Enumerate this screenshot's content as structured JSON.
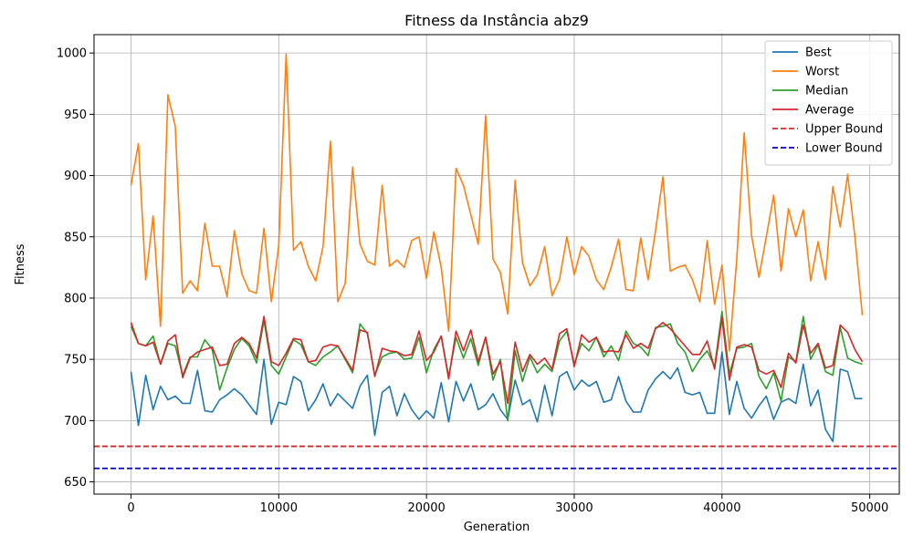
{
  "chart_data": {
    "type": "line",
    "title": "Fitness da Instância abz9",
    "xlabel": "Generation",
    "ylabel": "Fitness",
    "xlim": [
      -2500,
      52000
    ],
    "ylim": [
      640,
      1015
    ],
    "xticks": [
      0,
      10000,
      20000,
      30000,
      40000,
      50000
    ],
    "yticks": [
      650,
      700,
      750,
      800,
      850,
      900,
      950,
      1000
    ],
    "grid": true,
    "legend_position": "top-right",
    "x": [
      0,
      500,
      1000,
      1500,
      2000,
      2500,
      3000,
      3500,
      4000,
      4500,
      5000,
      5500,
      6000,
      6500,
      7000,
      7500,
      8000,
      8500,
      9000,
      9500,
      10000,
      10500,
      11000,
      11500,
      12000,
      12500,
      13000,
      13500,
      14000,
      14500,
      15000,
      15500,
      16000,
      16500,
      17000,
      17500,
      18000,
      18500,
      19000,
      19500,
      20000,
      20500,
      21000,
      21500,
      22000,
      22500,
      23000,
      23500,
      24000,
      24500,
      25000,
      25500,
      26000,
      26500,
      27000,
      27500,
      28000,
      28500,
      29000,
      29500,
      30000,
      30500,
      31000,
      31500,
      32000,
      32500,
      33000,
      33500,
      34000,
      34500,
      35000,
      35500,
      36000,
      36500,
      37000,
      37500,
      38000,
      38500,
      39000,
      39500,
      40000,
      40500,
      41000,
      41500,
      42000,
      42500,
      43000,
      43500,
      44000,
      44500,
      45000,
      45500,
      46000,
      46500,
      47000,
      47500,
      48000,
      48500,
      49000,
      49500
    ],
    "series": [
      {
        "name": "Best",
        "color": "#1f77b4",
        "values": [
          740,
          696,
          737,
          709,
          728,
          717,
          720,
          714,
          714,
          741,
          708,
          707,
          717,
          721,
          726,
          721,
          713,
          705,
          750,
          697,
          715,
          713,
          736,
          732,
          708,
          717,
          730,
          712,
          722,
          716,
          710,
          728,
          737,
          688,
          723,
          728,
          704,
          722,
          709,
          701,
          708,
          702,
          731,
          699,
          732,
          716,
          730,
          709,
          713,
          722,
          709,
          701,
          733,
          713,
          717,
          699,
          729,
          704,
          736,
          740,
          725,
          733,
          728,
          732,
          715,
          717,
          736,
          716,
          707,
          707,
          725,
          734,
          740,
          734,
          743,
          723,
          721,
          723,
          706,
          706,
          756,
          705,
          732,
          710,
          702,
          712,
          720,
          701,
          715,
          718,
          714,
          746,
          712,
          725,
          693,
          683,
          742,
          740,
          718,
          718
        ]
      },
      {
        "name": "Worst",
        "color": "#ff7f0e",
        "values": [
          892,
          926,
          815,
          867,
          777,
          966,
          940,
          804,
          814,
          806,
          861,
          826,
          826,
          801,
          855,
          820,
          806,
          804,
          857,
          797,
          843,
          999,
          839,
          846,
          826,
          814,
          842,
          928,
          797,
          812,
          907,
          844,
          830,
          827,
          892,
          826,
          831,
          825,
          847,
          850,
          816,
          854,
          825,
          773,
          906,
          892,
          868,
          844,
          949,
          832,
          821,
          787,
          896,
          829,
          810,
          819,
          842,
          802,
          815,
          850,
          819,
          842,
          834,
          815,
          807,
          825,
          848,
          807,
          806,
          849,
          815,
          855,
          899,
          822,
          825,
          827,
          815,
          797,
          847,
          795,
          827,
          757,
          832,
          935,
          851,
          817,
          850,
          884,
          822,
          873,
          850,
          872,
          814,
          846,
          815,
          891,
          858,
          901,
          850,
          786
        ]
      },
      {
        "name": "Median",
        "color": "#2ca02c",
        "values": [
          777,
          763,
          761,
          769,
          746,
          763,
          761,
          737,
          752,
          752,
          766,
          758,
          725,
          743,
          758,
          767,
          761,
          747,
          782,
          745,
          738,
          752,
          766,
          762,
          748,
          745,
          752,
          756,
          761,
          750,
          739,
          779,
          771,
          737,
          752,
          755,
          756,
          750,
          751,
          768,
          739,
          758,
          769,
          736,
          768,
          751,
          767,
          745,
          768,
          733,
          750,
          700,
          757,
          732,
          752,
          739,
          746,
          740,
          765,
          773,
          746,
          763,
          757,
          768,
          752,
          761,
          749,
          773,
          763,
          760,
          753,
          776,
          777,
          779,
          763,
          756,
          740,
          750,
          757,
          744,
          789,
          738,
          759,
          760,
          763,
          736,
          726,
          739,
          716,
          752,
          748,
          785,
          750,
          762,
          740,
          737,
          776,
          751,
          748,
          746
        ]
      },
      {
        "name": "Average",
        "color": "#d62728",
        "values": [
          780,
          763,
          761,
          764,
          746,
          765,
          770,
          735,
          751,
          756,
          758,
          760,
          745,
          746,
          763,
          768,
          763,
          751,
          785,
          748,
          745,
          755,
          767,
          766,
          748,
          749,
          760,
          762,
          761,
          751,
          741,
          774,
          772,
          736,
          759,
          757,
          756,
          753,
          754,
          773,
          749,
          756,
          769,
          734,
          773,
          757,
          774,
          748,
          768,
          738,
          748,
          714,
          764,
          740,
          754,
          746,
          751,
          742,
          771,
          775,
          744,
          770,
          764,
          768,
          756,
          757,
          756,
          770,
          759,
          763,
          759,
          775,
          780,
          775,
          768,
          761,
          754,
          754,
          765,
          742,
          784,
          733,
          760,
          762,
          760,
          741,
          738,
          741,
          727,
          755,
          747,
          778,
          755,
          763,
          743,
          745,
          778,
          772,
          758,
          748
        ]
      }
    ],
    "reference_lines": [
      {
        "name": "Upper Bound",
        "y": 679,
        "color": "#d62728",
        "style": "dashed"
      },
      {
        "name": "Lower Bound",
        "y": 661,
        "color": "#0000cc",
        "style": "dashed"
      }
    ]
  }
}
